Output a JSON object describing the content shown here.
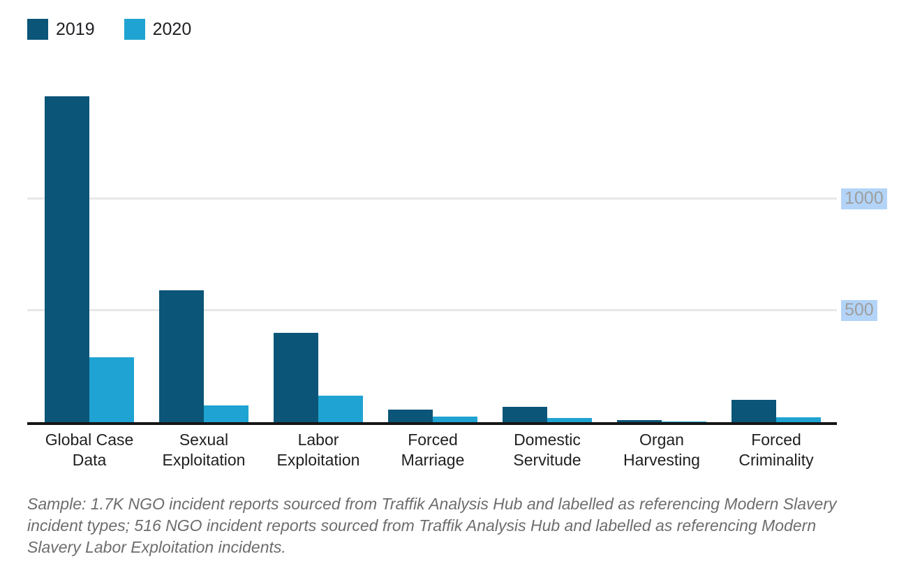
{
  "legend": {
    "items": [
      {
        "label": "2019",
        "color": "#0a5578"
      },
      {
        "label": "2020",
        "color": "#1fa3d2"
      }
    ]
  },
  "chart_data": {
    "type": "bar",
    "title": "",
    "xlabel": "",
    "ylabel": "",
    "categories": [
      "Global Case Data",
      "Sexual Exploitation",
      "Labor Exploitation",
      "Forced Marriage",
      "Domestic Servitude",
      "Organ Harvesting",
      "Forced Criminality"
    ],
    "category_label_lines": [
      [
        "Global Case",
        "Data"
      ],
      [
        "Sexual",
        "Exploitation"
      ],
      [
        "Labor",
        "Exploitation"
      ],
      [
        "Forced",
        "Marriage"
      ],
      [
        "Domestic",
        "Servitude"
      ],
      [
        "Organ",
        "Harvesting"
      ],
      [
        "Forced",
        "Criminality"
      ]
    ],
    "series": [
      {
        "name": "2019",
        "color": "#0a5578",
        "values": [
          1460,
          590,
          400,
          55,
          70,
          8,
          100
        ]
      },
      {
        "name": "2020",
        "color": "#1fa3d2",
        "values": [
          290,
          75,
          120,
          25,
          20,
          2,
          22
        ]
      }
    ],
    "ylim": [
      0,
      1578
    ],
    "yticks": [
      {
        "label": "500",
        "value": 500
      },
      {
        "label": "1000",
        "value": 1000
      }
    ],
    "grid": true,
    "legend_position": "top-left",
    "ytick_highlight_color": "#b3d4f8",
    "ytick_text_color": "#9e9e9e",
    "gridline_color": "#e7e7e7",
    "axis_color": "#161616"
  },
  "caption": {
    "line1": "Sample: 1.7K NGO incident reports sourced from Traffik Analysis Hub and labelled as referencing Modern Slavery",
    "line2": "incident types; 516 NGO incident reports sourced from Traffik Analysis Hub and labelled as referencing Modern",
    "line3": "Slavery Labor Exploitation incidents."
  }
}
